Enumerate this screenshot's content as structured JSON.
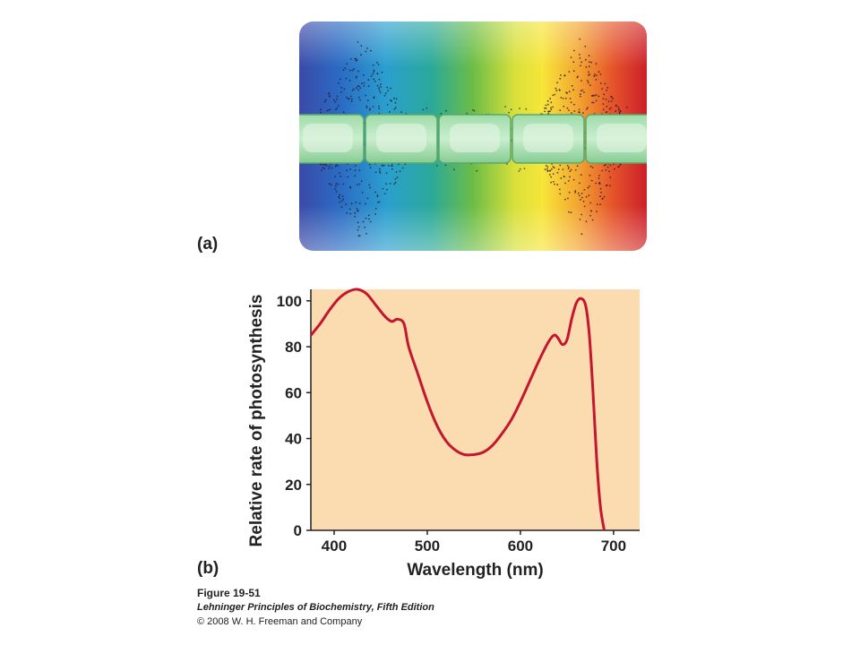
{
  "panel_a": {
    "label": "(a)",
    "description_colors": [
      "#3a4aa8",
      "#2a8fd0",
      "#1aa6a0",
      "#5cb84a",
      "#c7d840",
      "#f6e63a",
      "#f0a030",
      "#e04a2a",
      "#cc1f2a"
    ],
    "cell_color": "#8fd29a"
  },
  "panel_b": {
    "label": "(b)",
    "plot_bg": "#fadcb0",
    "line_color": "#c4162e"
  },
  "chart_data": {
    "type": "line",
    "title": "",
    "xlabel": "Wavelength (nm)",
    "ylabel": "Relative rate of photosynthesis",
    "xlim": [
      375,
      728
    ],
    "ylim": [
      0,
      105
    ],
    "xticks": [
      400,
      500,
      600,
      700
    ],
    "yticks": [
      0,
      20,
      40,
      60,
      80,
      100
    ],
    "grid": false,
    "series": [
      {
        "x": [
          375,
          385,
          395,
          405,
          415,
          425,
          435,
          445,
          455,
          462,
          468,
          475,
          480,
          490,
          500,
          510,
          520,
          530,
          540,
          550,
          560,
          570,
          580,
          590,
          600,
          610,
          620,
          630,
          636,
          640,
          645,
          650,
          655,
          660,
          665,
          670,
          674,
          678,
          682,
          686,
          690
        ],
        "y": [
          85,
          90,
          96,
          101,
          104,
          105,
          103,
          98,
          93,
          91,
          92,
          90,
          80,
          68,
          56,
          46,
          39,
          35,
          33,
          33,
          34,
          37,
          42,
          48,
          56,
          65,
          74,
          82,
          85,
          84,
          81,
          83,
          92,
          99,
          101,
          98,
          85,
          60,
          30,
          10,
          0
        ]
      }
    ]
  },
  "caption": {
    "figure": "Figure 19-51",
    "book": "Lehninger Principles of Biochemistry, Fifth Edition",
    "copyright": "© 2008 W. H. Freeman and Company"
  }
}
